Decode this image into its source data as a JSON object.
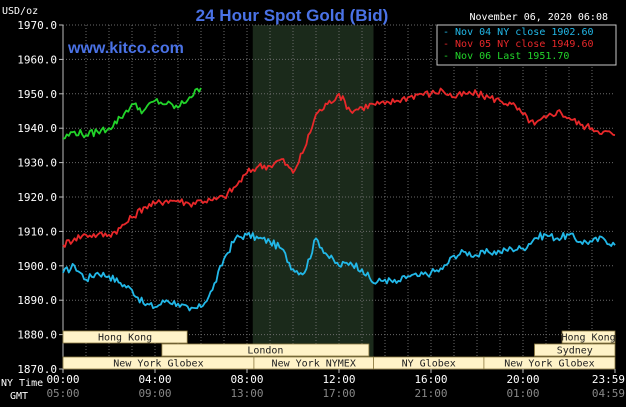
{
  "chart_data": {
    "type": "line",
    "title": "24 Hour Spot Gold (Bid)",
    "unit_label": "USD/oz",
    "source": "www.kitco.com",
    "datetime": "November 06, 2020 06:08",
    "ylim": [
      1870,
      1970
    ],
    "y_ticks": [
      "1970.0",
      "1960.0",
      "1950.0",
      "1940.0",
      "1930.0",
      "1920.0",
      "1910.0",
      "1900.0",
      "1890.0",
      "1880.0",
      "1870.0"
    ],
    "x_ticks_ny": [
      "00:00",
      "04:00",
      "08:00",
      "12:00",
      "16:00",
      "20:00",
      "23:59"
    ],
    "x_ticks_gmt": [
      "05:00",
      "09:00",
      "13:00",
      "17:00",
      "21:00",
      "01:00",
      "04:59"
    ],
    "row_label_ny": "NY Time",
    "row_label_gmt": "GMT",
    "x_hours": [
      0,
      24
    ],
    "shaded_period": [
      8.25,
      13.5
    ],
    "legend_position": "top-right",
    "grid": true,
    "series": [
      {
        "name": "Nov 04 NY close 1902.60",
        "color": "#22b8e8",
        "x": [
          0,
          0.5,
          1,
          1.5,
          2,
          2.5,
          3,
          3.5,
          4,
          4.5,
          5,
          5.5,
          6,
          6.5,
          7,
          7.5,
          8,
          8.5,
          9,
          9.5,
          10,
          10.5,
          11,
          11.5,
          12,
          12.5,
          13,
          13.5,
          14,
          14.5,
          15,
          15.5,
          16,
          16.5,
          17,
          17.5,
          18,
          18.5,
          19,
          19.5,
          20,
          20.5,
          21,
          21.5,
          22,
          22.5,
          23,
          23.5,
          24
        ],
        "values": [
          1898,
          1900,
          1896,
          1898,
          1897,
          1895,
          1893,
          1889,
          1888,
          1890,
          1889,
          1887,
          1888,
          1893,
          1902,
          1908,
          1909,
          1908,
          1907,
          1905,
          1899,
          1898,
          1908,
          1903,
          1900,
          1901,
          1899,
          1895,
          1896,
          1895,
          1897,
          1897,
          1898,
          1899,
          1903,
          1904,
          1903,
          1904,
          1904,
          1905,
          1905,
          1908,
          1909,
          1908,
          1909,
          1907,
          1907,
          1908,
          1906
        ]
      },
      {
        "name": "Nov 05 NY close 1949.60",
        "color": "#e8282a",
        "x": [
          0,
          0.5,
          1,
          1.5,
          2,
          2.5,
          3,
          3.5,
          4,
          4.5,
          5,
          5.5,
          6,
          6.5,
          7,
          7.5,
          8,
          8.5,
          9,
          9.5,
          10,
          10.5,
          11,
          11.5,
          12,
          12.5,
          13,
          13.5,
          14,
          14.5,
          15,
          15.5,
          16,
          16.5,
          17,
          17.5,
          18,
          18.5,
          19,
          19.5,
          20,
          20.5,
          21,
          21.5,
          22,
          22.5,
          23,
          23.5,
          24
        ],
        "values": [
          1906,
          1908,
          1909,
          1909,
          1909,
          1911,
          1914,
          1917,
          1918,
          1919,
          1919,
          1918,
          1919,
          1919,
          1920,
          1923,
          1927,
          1929,
          1929,
          1931,
          1927,
          1934,
          1944,
          1947,
          1950,
          1945,
          1946,
          1947,
          1947,
          1948,
          1949,
          1950,
          1950,
          1951,
          1949,
          1950,
          1950,
          1949,
          1948,
          1947,
          1944,
          1941,
          1943,
          1945,
          1943,
          1941,
          1940,
          1939,
          1938
        ]
      },
      {
        "name": "Nov 06 Last 1951.70",
        "color": "#22d42a",
        "x": [
          0,
          0.5,
          1,
          1.5,
          2,
          2.5,
          3,
          3.5,
          4,
          4.5,
          5,
          5.5,
          6
        ],
        "values": [
          1937,
          1939,
          1938,
          1939,
          1940,
          1943,
          1947,
          1945,
          1948,
          1947,
          1946,
          1949,
          1951.7
        ]
      }
    ],
    "sessions": [
      {
        "name": "Hong Kong",
        "row": 0,
        "start": -2,
        "end": 5.4
      },
      {
        "name": "Hong Kong",
        "row": 0,
        "start": 21.7,
        "end": 26
      },
      {
        "name": "London",
        "row": 1,
        "start": 4.3,
        "end": 13.3
      },
      {
        "name": "Sydney",
        "row": 1,
        "start": 20.5,
        "end": 26
      },
      {
        "name": "New York Globex",
        "row": 2,
        "start": -2,
        "end": 8.3
      },
      {
        "name": "New York NYMEX",
        "row": 2,
        "start": 8.3,
        "end": 13.5
      },
      {
        "name": "NY Globex",
        "row": 2,
        "start": 13.5,
        "end": 18.3
      },
      {
        "name": "New York Globex",
        "row": 2,
        "start": 18.3,
        "end": 26
      }
    ],
    "session_fill": "#fff3c8"
  }
}
